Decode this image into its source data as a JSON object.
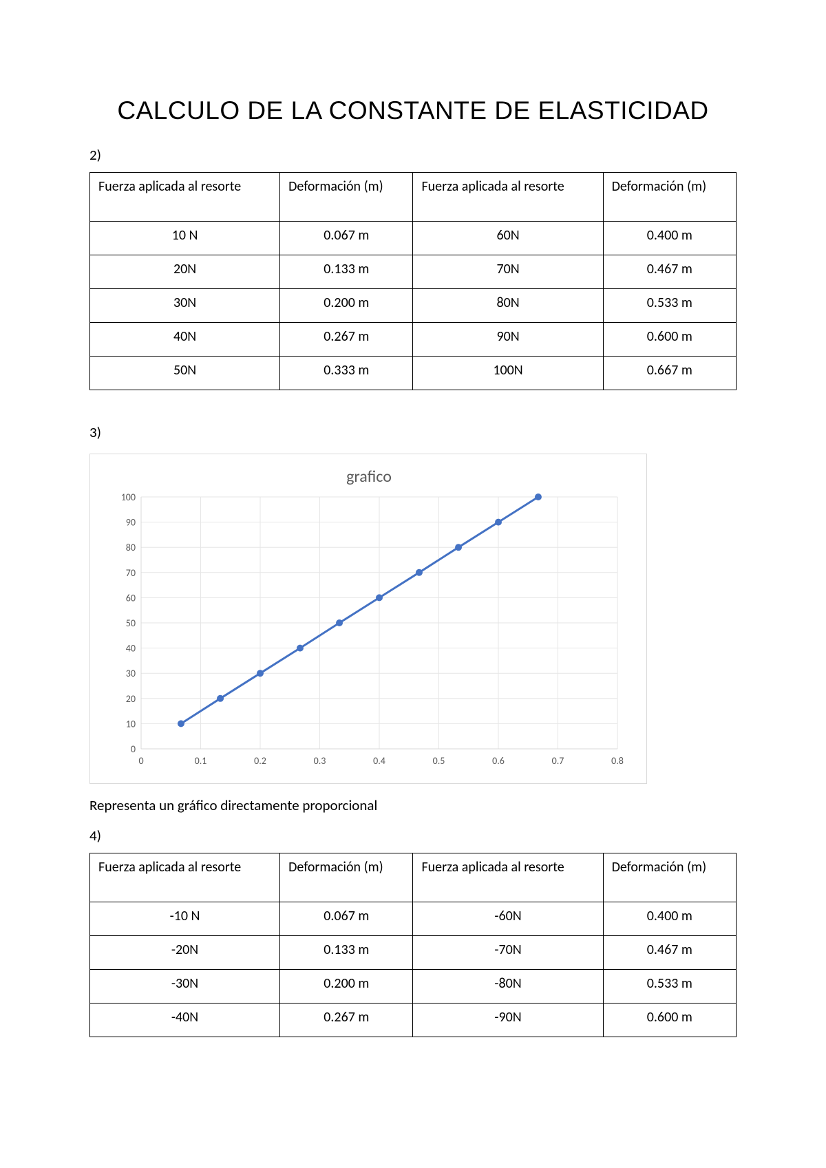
{
  "title": "CALCULO DE LA CONSTANTE DE ELASTICIDAD",
  "section2": {
    "num": "2)",
    "headers": [
      "Fuerza aplicada al resorte",
      "Deformación (m)",
      "Fuerza aplicada al resorte",
      "Deformación (m)"
    ],
    "rows": [
      [
        "10 N",
        "0.067 m",
        "60N",
        "0.400 m"
      ],
      [
        "20N",
        "0.133 m",
        "70N",
        "0.467 m"
      ],
      [
        "30N",
        "0.200 m",
        "80N",
        "0.533 m"
      ],
      [
        "40N",
        "0.267 m",
        "90N",
        "0.600 m"
      ],
      [
        "50N",
        "0.333 m",
        "100N",
        "0.667 m"
      ]
    ]
  },
  "section3": {
    "num": "3)",
    "caption": "Representa un gráfico directamente proporcional"
  },
  "chart": {
    "type": "line",
    "title": "grafico",
    "title_fontsize": 24,
    "title_color": "#595959",
    "points": [
      {
        "x": 0.067,
        "y": 10
      },
      {
        "x": 0.133,
        "y": 20
      },
      {
        "x": 0.2,
        "y": 30
      },
      {
        "x": 0.267,
        "y": 40
      },
      {
        "x": 0.333,
        "y": 50
      },
      {
        "x": 0.4,
        "y": 60
      },
      {
        "x": 0.467,
        "y": 70
      },
      {
        "x": 0.533,
        "y": 80
      },
      {
        "x": 0.6,
        "y": 90
      },
      {
        "x": 0.667,
        "y": 100
      }
    ],
    "line_color": "#4472c4",
    "line_width": 3,
    "marker_color": "#4472c4",
    "marker_radius": 5,
    "xlim": [
      0,
      0.8
    ],
    "ylim": [
      0,
      100
    ],
    "xtick_step": 0.1,
    "ytick_step": 10,
    "background_color": "#ffffff",
    "grid_color": "#e6e6e6",
    "axis_line_color": "#d9d9d9",
    "tick_label_color": "#595959",
    "tick_fontsize": 14
  },
  "section4": {
    "num": "4)",
    "headers": [
      "Fuerza aplicada al resorte",
      "Deformación (m)",
      "Fuerza aplicada al resorte",
      "Deformación (m)"
    ],
    "rows": [
      [
        "-10 N",
        "0.067 m",
        "-60N",
        "0.400 m"
      ],
      [
        "-20N",
        "0.133 m",
        "-70N",
        "0.467 m"
      ],
      [
        "-30N",
        "0.200 m",
        "-80N",
        "0.533 m"
      ],
      [
        "-40N",
        "0.267 m",
        "-90N",
        "0.600 m"
      ]
    ]
  }
}
